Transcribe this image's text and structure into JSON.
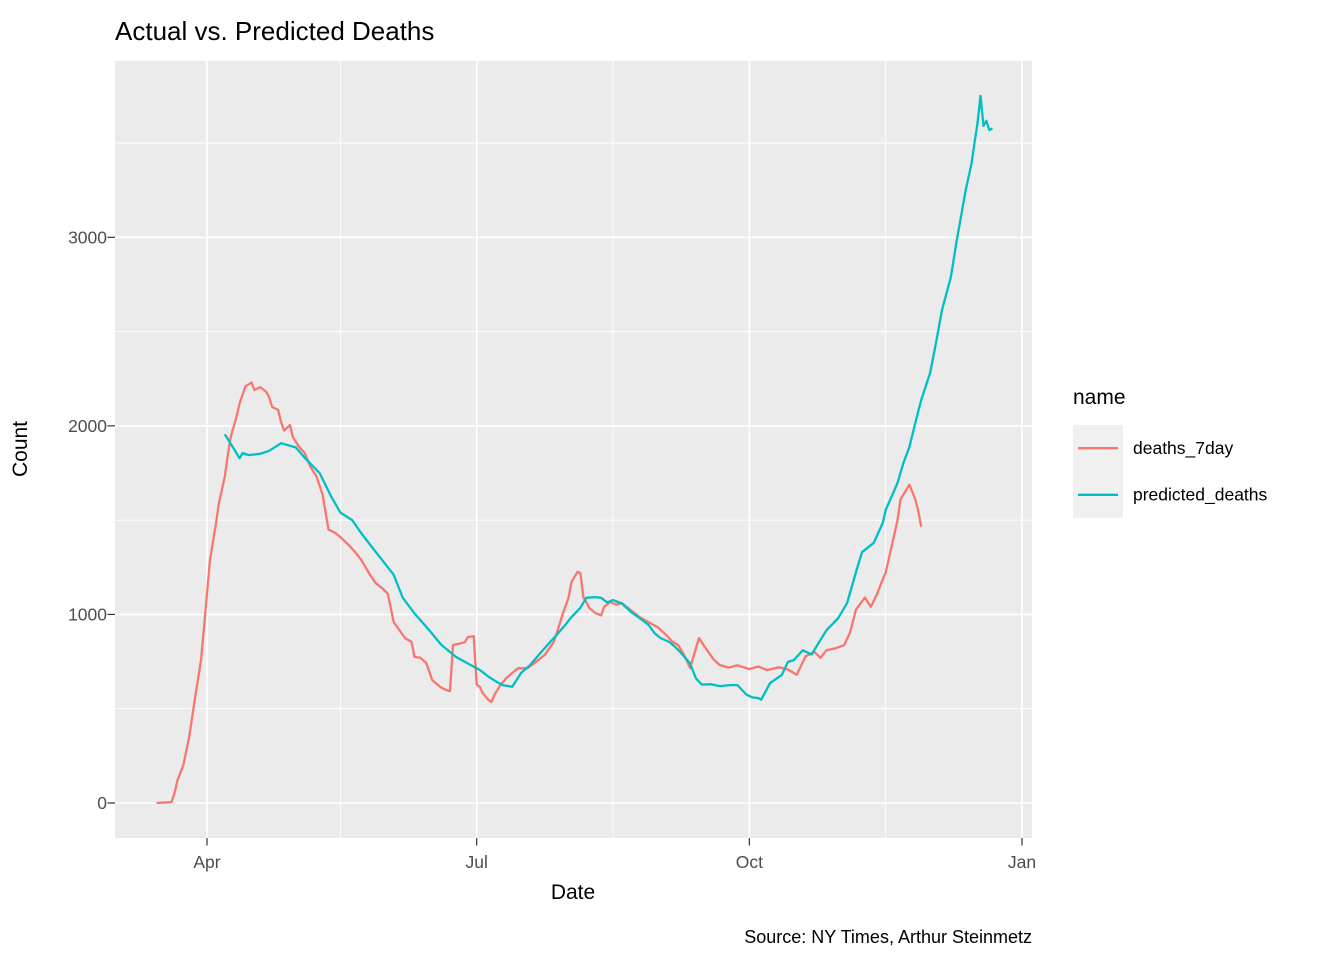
{
  "title": "Actual vs. Predicted Deaths",
  "caption": "Source: NY Times, Arthur Steinmetz",
  "legend": {
    "title": "name",
    "entries": [
      {
        "label": "deaths_7day",
        "color": "#F8766D"
      },
      {
        "label": "predicted_deaths",
        "color": "#00BFC4"
      }
    ]
  },
  "colors": {
    "panel_background": "#EBEBEB",
    "gridline": "#FFFFFF",
    "tick_mark": "#333333",
    "tick_label": "#4D4D4D",
    "text": "#000000",
    "legend_key_background": "#F0F0F0",
    "series_red": "#F8766D",
    "series_teal": "#00BFC4"
  },
  "chart_data": {
    "type": "line",
    "title": "Actual vs. Predicted Deaths",
    "xlabel": "Date",
    "ylabel": "Count",
    "legend_title": "name",
    "legend_position": "right",
    "grid": true,
    "x_ticks": [
      {
        "label": "Apr",
        "date": "2020-04-01"
      },
      {
        "label": "Jul",
        "date": "2020-07-01"
      },
      {
        "label": "Oct",
        "date": "2020-10-01"
      },
      {
        "label": "Jan",
        "date": "2021-01-01"
      }
    ],
    "x_minor_ticks": [
      "2020-05-16",
      "2020-08-16",
      "2020-11-16"
    ],
    "y_ticks": [
      0,
      1000,
      2000,
      3000
    ],
    "y_minor_ticks": [
      500,
      1500,
      2500,
      3500
    ],
    "x_range": [
      "2020-03-01",
      "2021-01-03"
    ],
    "ylim": [
      -190,
      3935
    ],
    "series": [
      {
        "name": "deaths_7day",
        "color": "#F8766D",
        "points": [
          [
            "2020-03-15",
            0
          ],
          [
            "2020-03-20",
            5
          ],
          [
            "2020-03-21",
            50
          ],
          [
            "2020-03-22",
            120
          ],
          [
            "2020-03-24",
            200
          ],
          [
            "2020-03-26",
            350
          ],
          [
            "2020-03-28",
            560
          ],
          [
            "2020-03-30",
            760
          ],
          [
            "2020-03-31",
            930
          ],
          [
            "2020-04-01",
            1110
          ],
          [
            "2020-04-02",
            1290
          ],
          [
            "2020-04-04",
            1480
          ],
          [
            "2020-04-05",
            1590
          ],
          [
            "2020-04-07",
            1730
          ],
          [
            "2020-04-08",
            1840
          ],
          [
            "2020-04-09",
            1940
          ],
          [
            "2020-04-11",
            2050
          ],
          [
            "2020-04-12",
            2120
          ],
          [
            "2020-04-14",
            2210
          ],
          [
            "2020-04-16",
            2230
          ],
          [
            "2020-04-17",
            2190
          ],
          [
            "2020-04-19",
            2205
          ],
          [
            "2020-04-21",
            2180
          ],
          [
            "2020-04-22",
            2150
          ],
          [
            "2020-04-23",
            2100
          ],
          [
            "2020-04-25",
            2085
          ],
          [
            "2020-04-26",
            2020
          ],
          [
            "2020-04-27",
            1975
          ],
          [
            "2020-04-29",
            2005
          ],
          [
            "2020-04-30",
            1940
          ],
          [
            "2020-05-02",
            1890
          ],
          [
            "2020-05-04",
            1855
          ],
          [
            "2020-05-06",
            1780
          ],
          [
            "2020-05-08",
            1730
          ],
          [
            "2020-05-10",
            1635
          ],
          [
            "2020-05-12",
            1450
          ],
          [
            "2020-05-14",
            1435
          ],
          [
            "2020-05-16",
            1410
          ],
          [
            "2020-05-19",
            1365
          ],
          [
            "2020-05-21",
            1330
          ],
          [
            "2020-05-23",
            1290
          ],
          [
            "2020-05-26",
            1210
          ],
          [
            "2020-05-28",
            1165
          ],
          [
            "2020-05-30",
            1140
          ],
          [
            "2020-06-01",
            1110
          ],
          [
            "2020-06-03",
            960
          ],
          [
            "2020-06-05",
            915
          ],
          [
            "2020-06-07",
            872
          ],
          [
            "2020-06-09",
            855
          ],
          [
            "2020-06-10",
            775
          ],
          [
            "2020-06-12",
            770
          ],
          [
            "2020-06-14",
            742
          ],
          [
            "2020-06-16",
            652
          ],
          [
            "2020-06-19",
            612
          ],
          [
            "2020-06-21",
            597
          ],
          [
            "2020-06-22",
            594
          ],
          [
            "2020-06-23",
            838
          ],
          [
            "2020-06-25",
            845
          ],
          [
            "2020-06-27",
            852
          ],
          [
            "2020-06-28",
            880
          ],
          [
            "2020-06-30",
            885
          ],
          [
            "2020-07-01",
            628
          ],
          [
            "2020-07-02",
            616
          ],
          [
            "2020-07-03",
            584
          ],
          [
            "2020-07-05",
            546
          ],
          [
            "2020-07-06",
            536
          ],
          [
            "2020-07-07",
            574
          ],
          [
            "2020-07-09",
            626
          ],
          [
            "2020-07-11",
            662
          ],
          [
            "2020-07-13",
            690
          ],
          [
            "2020-07-15",
            715
          ],
          [
            "2020-07-18",
            714
          ],
          [
            "2020-07-21",
            748
          ],
          [
            "2020-07-24",
            786
          ],
          [
            "2020-07-27",
            854
          ],
          [
            "2020-07-28",
            900
          ],
          [
            "2020-07-30",
            1000
          ],
          [
            "2020-08-01",
            1090
          ],
          [
            "2020-08-02",
            1172
          ],
          [
            "2020-08-04",
            1226
          ],
          [
            "2020-08-05",
            1218
          ],
          [
            "2020-08-06",
            1090
          ],
          [
            "2020-08-07",
            1066
          ],
          [
            "2020-08-08",
            1034
          ],
          [
            "2020-08-10",
            1008
          ],
          [
            "2020-08-12",
            995
          ],
          [
            "2020-08-13",
            1040
          ],
          [
            "2020-08-15",
            1066
          ],
          [
            "2020-08-17",
            1052
          ],
          [
            "2020-08-19",
            1060
          ],
          [
            "2020-08-22",
            1023
          ],
          [
            "2020-08-25",
            986
          ],
          [
            "2020-08-28",
            958
          ],
          [
            "2020-08-31",
            933
          ],
          [
            "2020-09-03",
            890
          ],
          [
            "2020-09-05",
            856
          ],
          [
            "2020-09-07",
            838
          ],
          [
            "2020-09-09",
            786
          ],
          [
            "2020-09-11",
            716
          ],
          [
            "2020-09-14",
            875
          ],
          [
            "2020-09-16",
            827
          ],
          [
            "2020-09-19",
            760
          ],
          [
            "2020-09-21",
            732
          ],
          [
            "2020-09-24",
            718
          ],
          [
            "2020-09-27",
            730
          ],
          [
            "2020-10-01",
            710
          ],
          [
            "2020-10-04",
            724
          ],
          [
            "2020-10-07",
            705
          ],
          [
            "2020-10-11",
            720
          ],
          [
            "2020-10-14",
            708
          ],
          [
            "2020-10-17",
            680
          ],
          [
            "2020-10-20",
            778
          ],
          [
            "2020-10-23",
            800
          ],
          [
            "2020-10-25",
            770
          ],
          [
            "2020-10-27",
            810
          ],
          [
            "2020-10-30",
            820
          ],
          [
            "2020-11-02",
            838
          ],
          [
            "2020-11-04",
            905
          ],
          [
            "2020-11-06",
            1025
          ],
          [
            "2020-11-09",
            1090
          ],
          [
            "2020-11-11",
            1040
          ],
          [
            "2020-11-13",
            1105
          ],
          [
            "2020-11-15",
            1185
          ],
          [
            "2020-11-16",
            1222
          ],
          [
            "2020-11-17",
            1290
          ],
          [
            "2020-11-19",
            1430
          ],
          [
            "2020-11-20",
            1500
          ],
          [
            "2020-11-21",
            1610
          ],
          [
            "2020-11-24",
            1688
          ],
          [
            "2020-11-26",
            1610
          ],
          [
            "2020-11-27",
            1548
          ],
          [
            "2020-11-28",
            1465
          ]
        ]
      },
      {
        "name": "predicted_deaths",
        "color": "#00BFC4",
        "points": [
          [
            "2020-04-07",
            1955
          ],
          [
            "2020-04-10",
            1880
          ],
          [
            "2020-04-12",
            1828
          ],
          [
            "2020-04-13",
            1856
          ],
          [
            "2020-04-15",
            1845
          ],
          [
            "2020-04-19",
            1852
          ],
          [
            "2020-04-22",
            1868
          ],
          [
            "2020-04-26",
            1908
          ],
          [
            "2020-05-01",
            1885
          ],
          [
            "2020-05-04",
            1830
          ],
          [
            "2020-05-09",
            1750
          ],
          [
            "2020-05-13",
            1622
          ],
          [
            "2020-05-16",
            1540
          ],
          [
            "2020-05-20",
            1500
          ],
          [
            "2020-05-23",
            1432
          ],
          [
            "2020-05-27",
            1350
          ],
          [
            "2020-05-30",
            1290
          ],
          [
            "2020-06-03",
            1210
          ],
          [
            "2020-06-06",
            1090
          ],
          [
            "2020-06-10",
            1005
          ],
          [
            "2020-06-15",
            916
          ],
          [
            "2020-06-19",
            840
          ],
          [
            "2020-06-24",
            775
          ],
          [
            "2020-06-28",
            740
          ],
          [
            "2020-07-02",
            706
          ],
          [
            "2020-07-05",
            670
          ],
          [
            "2020-07-08",
            640
          ],
          [
            "2020-07-10",
            624
          ],
          [
            "2020-07-13",
            616
          ],
          [
            "2020-07-16",
            690
          ],
          [
            "2020-07-19",
            730
          ],
          [
            "2020-07-22",
            786
          ],
          [
            "2020-07-25",
            840
          ],
          [
            "2020-07-28",
            892
          ],
          [
            "2020-07-31",
            946
          ],
          [
            "2020-08-02",
            986
          ],
          [
            "2020-08-05",
            1035
          ],
          [
            "2020-08-07",
            1088
          ],
          [
            "2020-08-10",
            1092
          ],
          [
            "2020-08-12",
            1088
          ],
          [
            "2020-08-14",
            1064
          ],
          [
            "2020-08-16",
            1076
          ],
          [
            "2020-08-19",
            1058
          ],
          [
            "2020-08-22",
            1014
          ],
          [
            "2020-08-25",
            980
          ],
          [
            "2020-08-28",
            944
          ],
          [
            "2020-08-30",
            901
          ],
          [
            "2020-09-01",
            875
          ],
          [
            "2020-09-04",
            854
          ],
          [
            "2020-09-06",
            828
          ],
          [
            "2020-09-08",
            795
          ],
          [
            "2020-09-11",
            740
          ],
          [
            "2020-09-12",
            700
          ],
          [
            "2020-09-13",
            660
          ],
          [
            "2020-09-15",
            628
          ],
          [
            "2020-09-18",
            630
          ],
          [
            "2020-09-21",
            620
          ],
          [
            "2020-09-25",
            626
          ],
          [
            "2020-09-27",
            625
          ],
          [
            "2020-09-30",
            575
          ],
          [
            "2020-10-02",
            560
          ],
          [
            "2020-10-04",
            557
          ],
          [
            "2020-10-05",
            548
          ],
          [
            "2020-10-08",
            636
          ],
          [
            "2020-10-12",
            680
          ],
          [
            "2020-10-14",
            748
          ],
          [
            "2020-10-16",
            758
          ],
          [
            "2020-10-19",
            810
          ],
          [
            "2020-10-22",
            788
          ],
          [
            "2020-10-27",
            916
          ],
          [
            "2020-10-31",
            980
          ],
          [
            "2020-11-03",
            1060
          ],
          [
            "2020-11-06",
            1225
          ],
          [
            "2020-11-08",
            1330
          ],
          [
            "2020-11-12",
            1380
          ],
          [
            "2020-11-15",
            1485
          ],
          [
            "2020-11-16",
            1554
          ],
          [
            "2020-11-20",
            1697
          ],
          [
            "2020-11-22",
            1803
          ],
          [
            "2020-11-24",
            1888
          ],
          [
            "2020-11-26",
            2015
          ],
          [
            "2020-11-28",
            2137
          ],
          [
            "2020-12-01",
            2280
          ],
          [
            "2020-12-03",
            2440
          ],
          [
            "2020-12-05",
            2614
          ],
          [
            "2020-12-08",
            2790
          ],
          [
            "2020-12-10",
            2985
          ],
          [
            "2020-12-12",
            3160
          ],
          [
            "2020-12-13",
            3250
          ],
          [
            "2020-12-15",
            3393
          ],
          [
            "2020-12-16",
            3505
          ],
          [
            "2020-12-17",
            3605
          ],
          [
            "2020-12-18",
            3750
          ],
          [
            "2020-12-19",
            3590
          ],
          [
            "2020-12-20",
            3618
          ],
          [
            "2020-12-21",
            3568
          ],
          [
            "2020-12-22",
            3578
          ]
        ]
      }
    ]
  }
}
